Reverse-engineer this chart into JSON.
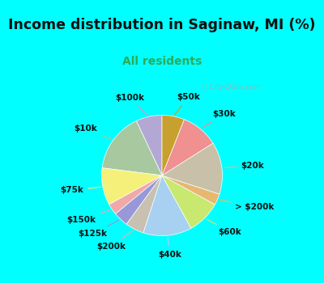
{
  "title": "Income distribution in Saginaw, MI (%)",
  "subtitle": "All residents",
  "title_color": "#111111",
  "subtitle_color": "#2eaa55",
  "bg_cyan": "#00ffff",
  "bg_chart": "#d8f0e4",
  "watermark": "City-Data.com",
  "labels": [
    "$100k",
    "$10k",
    "$75k",
    "$150k",
    "$125k",
    "$200k",
    "$40k",
    "$60k",
    "> $200k",
    "$20k",
    "$30k",
    "$50k"
  ],
  "values": [
    7,
    16,
    10,
    3,
    4,
    5,
    13,
    9,
    3,
    14,
    10,
    6
  ],
  "colors": [
    "#b3a8d4",
    "#a8c8a0",
    "#f5f07a",
    "#f0a8a8",
    "#9898d8",
    "#c8c0b0",
    "#a8d0f0",
    "#c8e870",
    "#e8b870",
    "#c8c0a8",
    "#f09090",
    "#c8a030"
  ],
  "label_fontsize": 7.5,
  "title_fontsize": 12.5,
  "subtitle_fontsize": 10,
  "startangle": 90
}
